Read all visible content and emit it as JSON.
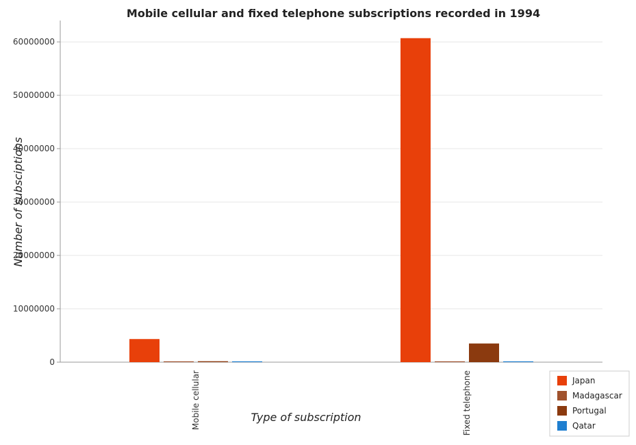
{
  "chart_data": {
    "type": "bar",
    "title": "Mobile cellular and fixed telephone subscriptions recorded in 1994",
    "xlabel": "Type of subscription",
    "ylabel": "Number of subsciptions",
    "categories": [
      "Mobile cellular",
      "Fixed telephone"
    ],
    "series": [
      {
        "name": "Japan",
        "color": "#e8400a",
        "values": [
          4331369,
          60700000
        ]
      },
      {
        "name": "Madagascar",
        "color": "#a0522d",
        "values": [
          1200,
          33000
        ]
      },
      {
        "name": "Portugal",
        "color": "#8b3a0f",
        "values": [
          173508,
          3500000
        ]
      },
      {
        "name": "Qatar",
        "color": "#1f7fd0",
        "values": [
          12000,
          120000
        ]
      }
    ],
    "ylim": [
      0,
      64000000
    ],
    "yticks": [
      0,
      10000000,
      20000000,
      30000000,
      40000000,
      50000000,
      60000000
    ],
    "ytick_labels": [
      "0",
      "10000000",
      "20000000",
      "30000000",
      "40000000",
      "50000000",
      "60000000"
    ],
    "grid": true,
    "legend_position": "bottom-right"
  }
}
